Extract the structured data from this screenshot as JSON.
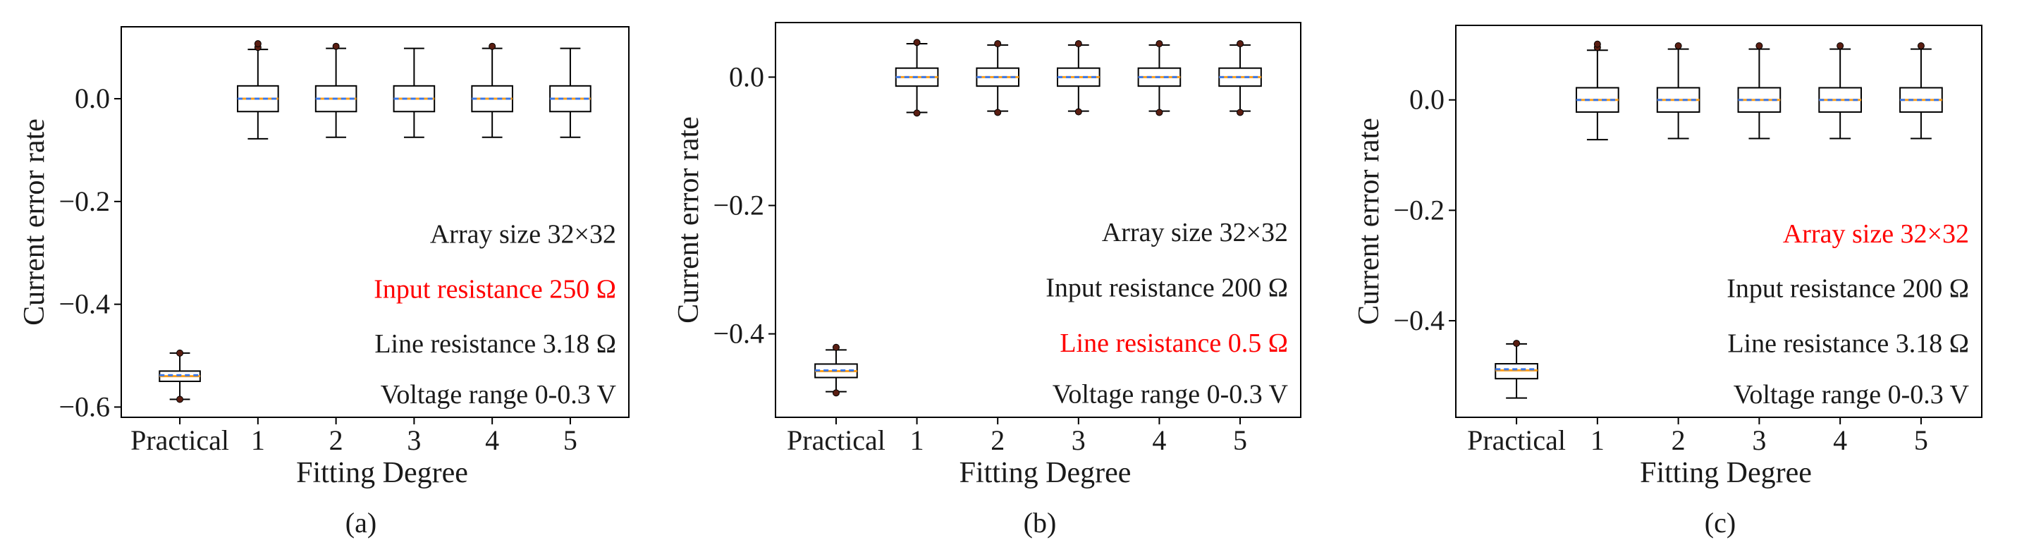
{
  "colors": {
    "box": "#000000",
    "median": "#ff9f1a",
    "mean": "#3b78e7",
    "flier": "#5a1e12",
    "highlight": "#ff0000",
    "text": "#1a1a1a"
  },
  "chart_data": [
    {
      "type": "box",
      "caption": "(a)",
      "xlabel": "Fitting Degree",
      "ylabel": "Current error rate",
      "categories": [
        "Practical",
        "1",
        "2",
        "3",
        "4",
        "5"
      ],
      "ylim": [
        -0.62,
        0.14
      ],
      "yticks": [
        -0.6,
        -0.4,
        -0.2,
        0.0
      ],
      "ytick_labels": [
        "−0.6",
        "−0.4",
        "−0.2",
        "0.0"
      ],
      "boxes": [
        {
          "whislo": -0.585,
          "q1": -0.55,
          "med": -0.54,
          "mean": -0.538,
          "q3": -0.53,
          "whishi": -0.495,
          "fliers": [
            -0.585,
            -0.495
          ]
        },
        {
          "whislo": -0.078,
          "q1": -0.025,
          "med": 0.0,
          "mean": 0.0,
          "q3": 0.025,
          "whishi": 0.096,
          "fliers": [
            0.1,
            0.107
          ]
        },
        {
          "whislo": -0.075,
          "q1": -0.025,
          "med": 0.0,
          "mean": 0.0,
          "q3": 0.025,
          "whishi": 0.098,
          "fliers": [
            0.102
          ]
        },
        {
          "whislo": -0.075,
          "q1": -0.025,
          "med": 0.0,
          "mean": 0.0,
          "q3": 0.025,
          "whishi": 0.098,
          "fliers": []
        },
        {
          "whislo": -0.075,
          "q1": -0.025,
          "med": 0.0,
          "mean": 0.0,
          "q3": 0.025,
          "whishi": 0.098,
          "fliers": [
            0.102
          ]
        },
        {
          "whislo": -0.075,
          "q1": -0.025,
          "med": 0.0,
          "mean": 0.0,
          "q3": 0.025,
          "whishi": 0.098,
          "fliers": []
        }
      ],
      "annotations": [
        {
          "text": "Array size 32×32",
          "highlight": false
        },
        {
          "text": "Input resistance 250 Ω",
          "highlight": true
        },
        {
          "text": "Line resistance 3.18 Ω",
          "highlight": false
        },
        {
          "text": "Voltage range 0-0.3 V",
          "highlight": false
        }
      ]
    },
    {
      "type": "box",
      "caption": "(b)",
      "xlabel": "Fitting Degree",
      "ylabel": "Current error rate",
      "categories": [
        "Practical",
        "1",
        "2",
        "3",
        "4",
        "5"
      ],
      "ylim": [
        -0.53,
        0.085
      ],
      "yticks": [
        -0.4,
        -0.2,
        0.0
      ],
      "ytick_labels": [
        "−0.4",
        "−0.2",
        "0.0"
      ],
      "boxes": [
        {
          "whislo": -0.49,
          "q1": -0.468,
          "med": -0.458,
          "mean": -0.457,
          "q3": -0.447,
          "whishi": -0.425,
          "fliers": [
            -0.492,
            -0.421
          ]
        },
        {
          "whislo": -0.055,
          "q1": -0.014,
          "med": 0.0,
          "mean": 0.0,
          "q3": 0.014,
          "whishi": 0.052,
          "fliers": [
            -0.056,
            0.054
          ]
        },
        {
          "whislo": -0.053,
          "q1": -0.014,
          "med": 0.0,
          "mean": 0.0,
          "q3": 0.014,
          "whishi": 0.05,
          "fliers": [
            -0.055,
            0.052
          ]
        },
        {
          "whislo": -0.053,
          "q1": -0.014,
          "med": 0.0,
          "mean": 0.0,
          "q3": 0.014,
          "whishi": 0.05,
          "fliers": [
            -0.054,
            0.052
          ]
        },
        {
          "whislo": -0.053,
          "q1": -0.014,
          "med": 0.0,
          "mean": 0.0,
          "q3": 0.014,
          "whishi": 0.05,
          "fliers": [
            -0.055,
            0.052
          ]
        },
        {
          "whislo": -0.053,
          "q1": -0.014,
          "med": 0.0,
          "mean": 0.0,
          "q3": 0.014,
          "whishi": 0.05,
          "fliers": [
            -0.055,
            0.052
          ]
        }
      ],
      "annotations": [
        {
          "text": "Array size 32×32",
          "highlight": false
        },
        {
          "text": "Input resistance 200 Ω",
          "highlight": false
        },
        {
          "text": "Line resistance 0.5 Ω",
          "highlight": true
        },
        {
          "text": "Voltage range 0-0.3 V",
          "highlight": false
        }
      ]
    },
    {
      "type": "box",
      "caption": "(c)",
      "xlabel": "Fitting Degree",
      "ylabel": "Current error rate",
      "categories": [
        "Practical",
        "1",
        "2",
        "3",
        "4",
        "5"
      ],
      "ylim": [
        -0.575,
        0.135
      ],
      "yticks": [
        -0.4,
        -0.2,
        0.0
      ],
      "ytick_labels": [
        "−0.4",
        "−0.2",
        "0.0"
      ],
      "boxes": [
        {
          "whislo": -0.54,
          "q1": -0.505,
          "med": -0.49,
          "mean": -0.488,
          "q3": -0.478,
          "whishi": -0.442,
          "fliers": [
            -0.441
          ]
        },
        {
          "whislo": -0.072,
          "q1": -0.022,
          "med": 0.0,
          "mean": 0.0,
          "q3": 0.022,
          "whishi": 0.09,
          "fliers": [
            0.095,
            0.101
          ]
        },
        {
          "whislo": -0.07,
          "q1": -0.022,
          "med": 0.0,
          "mean": 0.0,
          "q3": 0.022,
          "whishi": 0.092,
          "fliers": [
            0.098
          ]
        },
        {
          "whislo": -0.07,
          "q1": -0.022,
          "med": 0.0,
          "mean": 0.0,
          "q3": 0.022,
          "whishi": 0.092,
          "fliers": [
            0.098
          ]
        },
        {
          "whislo": -0.07,
          "q1": -0.022,
          "med": 0.0,
          "mean": 0.0,
          "q3": 0.022,
          "whishi": 0.092,
          "fliers": [
            0.098
          ]
        },
        {
          "whislo": -0.07,
          "q1": -0.022,
          "med": 0.0,
          "mean": 0.0,
          "q3": 0.022,
          "whishi": 0.092,
          "fliers": [
            0.098
          ]
        }
      ],
      "annotations": [
        {
          "text": "Array size 32×32",
          "highlight": true
        },
        {
          "text": "Input resistance 200 Ω",
          "highlight": false
        },
        {
          "text": "Line resistance 3.18 Ω",
          "highlight": false
        },
        {
          "text": "Voltage range 0-0.3 V",
          "highlight": false
        }
      ]
    }
  ]
}
